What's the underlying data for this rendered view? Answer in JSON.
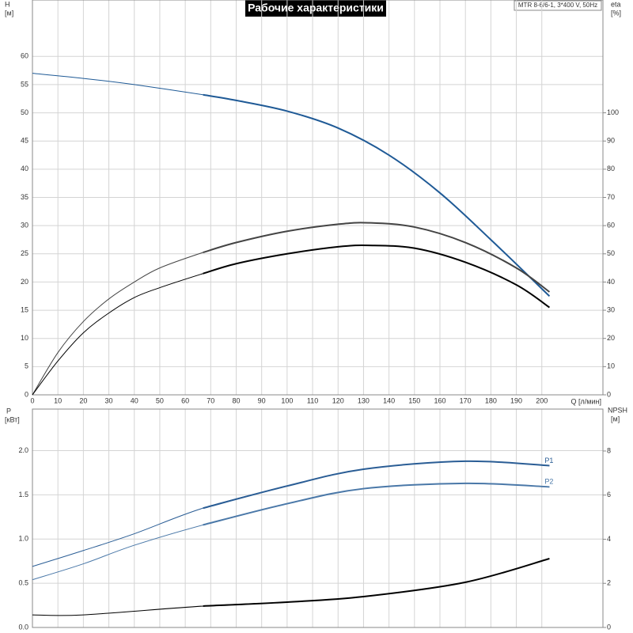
{
  "chart_data": [
    {
      "type": "line",
      "title": "Рабочие характеристики",
      "subtitle": "MTR 8-6/6-1, 3*400 V, 50Hz",
      "y_label": "H",
      "y_unit": "[м]",
      "y2_label": "eta",
      "y2_unit": "[%]",
      "x_label": "Q [л/мин]",
      "xlim": [
        0,
        224
      ],
      "xticks": [
        0,
        10,
        20,
        30,
        40,
        50,
        60,
        70,
        80,
        90,
        100,
        110,
        120,
        130,
        140,
        150,
        160,
        170,
        180,
        190,
        200
      ],
      "ylim": [
        0,
        70
      ],
      "yticks": [
        0,
        5,
        10,
        15,
        20,
        25,
        30,
        35,
        40,
        45,
        50,
        55,
        60
      ],
      "y2lim": [
        0,
        140
      ],
      "y2ticks": [
        0,
        10,
        20,
        30,
        40,
        50,
        60,
        70,
        80,
        90,
        100
      ],
      "grid": true,
      "range_start": 67,
      "series": [
        {
          "color": "#1f5a96",
          "x": [
            0,
            20,
            40,
            67,
            80,
            100,
            120,
            140,
            160,
            180,
            203
          ],
          "values": [
            57,
            56.1,
            55,
            53.2,
            52.2,
            50.3,
            47.3,
            42.5,
            35.8,
            27.5,
            17.5
          ]
        },
        {
          "color": "#444444",
          "axis": "y2",
          "x": [
            0,
            10,
            20,
            30,
            40,
            50,
            67,
            80,
            100,
            120,
            132,
            150,
            170,
            190,
            203
          ],
          "values": [
            0,
            15,
            26,
            34,
            40,
            45,
            50.5,
            54,
            58,
            60.5,
            61,
            59.5,
            54,
            45,
            36.5
          ]
        },
        {
          "color": "#000000",
          "axis": "y2",
          "x": [
            0,
            10,
            20,
            30,
            40,
            50,
            67,
            80,
            100,
            120,
            132,
            150,
            170,
            190,
            203
          ],
          "values": [
            0,
            12,
            22,
            29,
            34.5,
            38,
            43,
            46.5,
            50,
            52.5,
            53,
            52,
            47,
            39,
            31
          ]
        }
      ]
    },
    {
      "type": "line",
      "y_label": "P",
      "y_unit": "[кВт]",
      "y2_label": "NPSH",
      "y2_unit": "[м]",
      "xlim": [
        0,
        224
      ],
      "ylim": [
        0,
        2.47
      ],
      "yticks": [
        {
          "value": 0,
          "label": "0.0"
        },
        0.5,
        {
          "value": 1,
          "label": "1.0"
        },
        1.5,
        {
          "value": 2,
          "label": "2.0"
        }
      ],
      "y2lim": [
        0,
        9.9
      ],
      "y2ticks": [
        0,
        2,
        4,
        6,
        8
      ],
      "grid": true,
      "range_start": 67,
      "series": [
        {
          "name": "P1",
          "color": "#2a5d95",
          "x": [
            0,
            20,
            40,
            67,
            100,
            130,
            170,
            203
          ],
          "values": [
            0.69,
            0.87,
            1.06,
            1.35,
            1.6,
            1.79,
            1.88,
            1.83
          ]
        },
        {
          "name": "P2",
          "color": "#4a78a8",
          "x": [
            0,
            20,
            40,
            67,
            100,
            130,
            170,
            203
          ],
          "values": [
            0.54,
            0.72,
            0.93,
            1.16,
            1.4,
            1.57,
            1.63,
            1.59
          ]
        },
        {
          "color": "#000000",
          "axis": "y2",
          "x": [
            0,
            20,
            67,
            100,
            130,
            170,
            203
          ],
          "values": [
            0.57,
            0.57,
            0.97,
            1.15,
            1.4,
            2.05,
            3.12
          ]
        }
      ]
    }
  ]
}
